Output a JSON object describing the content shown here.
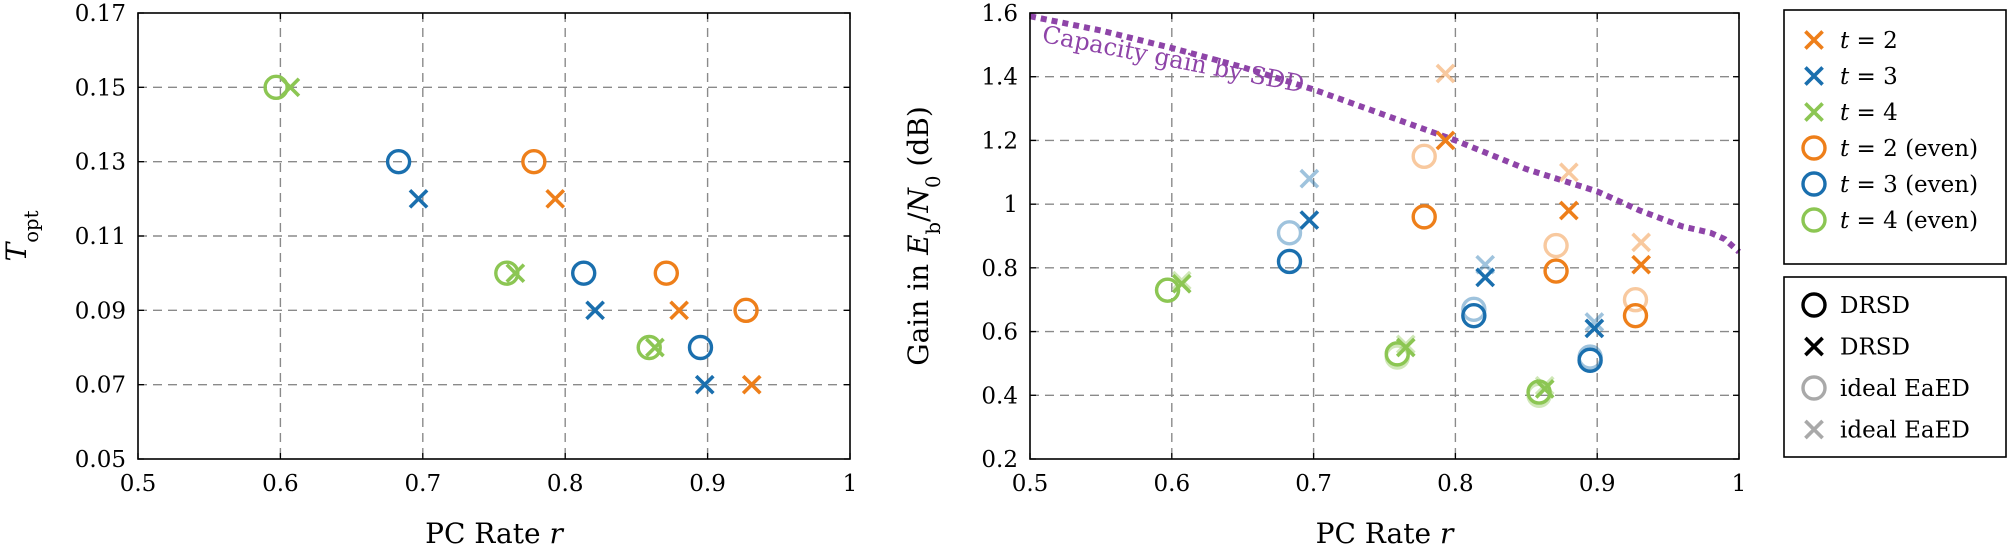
{
  "colors": {
    "orange": "#ee7f1a",
    "blue": "#1a6fae",
    "green": "#8cc653",
    "purple": "#8e44a8",
    "grid": "#8a8a8a",
    "legend_gray": "#a9a9a9"
  },
  "chart_data": [
    {
      "type": "scatter",
      "xlabel": "PC Rate r",
      "ylabel": "T_opt",
      "xlim": [
        0.5,
        1.0
      ],
      "ylim": [
        0.05,
        0.17
      ],
      "xticks": [
        0.5,
        0.6,
        0.7,
        0.8,
        0.9,
        1.0
      ],
      "xtick_labels": [
        "0.5",
        "0.6",
        "0.7",
        "0.8",
        "0.9",
        "1"
      ],
      "yticks": [
        0.05,
        0.07,
        0.09,
        0.11,
        0.13,
        0.15,
        0.17
      ],
      "ytick_labels": [
        "0.05",
        "0.07",
        "0.09",
        "0.11",
        "0.13",
        "0.15",
        "0.17"
      ],
      "grid": true,
      "series": [
        {
          "name": "t = 2",
          "color": "orange",
          "marker": "x",
          "points": [
            [
              0.793,
              0.12
            ],
            [
              0.88,
              0.09
            ],
            [
              0.931,
              0.07
            ]
          ]
        },
        {
          "name": "t = 3",
          "color": "blue",
          "marker": "x",
          "points": [
            [
              0.697,
              0.12
            ],
            [
              0.821,
              0.09
            ],
            [
              0.898,
              0.07
            ]
          ]
        },
        {
          "name": "t = 4",
          "color": "green",
          "marker": "x",
          "points": [
            [
              0.607,
              0.15
            ],
            [
              0.765,
              0.1
            ],
            [
              0.863,
              0.08
            ]
          ]
        },
        {
          "name": "t = 2 (even)",
          "color": "orange",
          "marker": "o",
          "points": [
            [
              0.778,
              0.13
            ],
            [
              0.871,
              0.1
            ],
            [
              0.927,
              0.09
            ]
          ]
        },
        {
          "name": "t = 3 (even)",
          "color": "blue",
          "marker": "o",
          "points": [
            [
              0.683,
              0.13
            ],
            [
              0.813,
              0.1
            ],
            [
              0.895,
              0.08
            ]
          ]
        },
        {
          "name": "t = 4 (even)",
          "color": "green",
          "marker": "o",
          "points": [
            [
              0.597,
              0.15
            ],
            [
              0.759,
              0.1
            ],
            [
              0.859,
              0.08
            ]
          ]
        }
      ]
    },
    {
      "type": "scatter",
      "xlabel": "PC Rate r",
      "ylabel": "Gain in E_b/N_0 (dB)",
      "xlim": [
        0.5,
        1.0
      ],
      "ylim": [
        0.2,
        1.6
      ],
      "xticks": [
        0.5,
        0.6,
        0.7,
        0.8,
        0.9,
        1.0
      ],
      "xtick_labels": [
        "0.5",
        "0.6",
        "0.7",
        "0.8",
        "0.9",
        "1"
      ],
      "yticks": [
        0.2,
        0.4,
        0.6,
        0.8,
        1.0,
        1.2,
        1.4,
        1.6
      ],
      "ytick_labels": [
        "0.2",
        "0.4",
        "0.6",
        "0.8",
        "1",
        "1.2",
        "1.4",
        "1.6"
      ],
      "grid": true,
      "annotation": "Capacity gain by SDD",
      "capacity_curve": {
        "color": "purple",
        "points": [
          [
            0.5,
            1.59
          ],
          [
            0.55,
            1.545
          ],
          [
            0.6,
            1.49
          ],
          [
            0.65,
            1.43
          ],
          [
            0.7,
            1.36
          ],
          [
            0.75,
            1.28
          ],
          [
            0.8,
            1.2
          ],
          [
            0.85,
            1.11
          ],
          [
            0.9,
            1.04
          ],
          [
            0.93,
            0.98
          ],
          [
            0.96,
            0.93
          ],
          [
            0.98,
            0.91
          ],
          [
            0.99,
            0.89
          ],
          [
            1.0,
            0.85
          ]
        ]
      },
      "series": [
        {
          "name": "t = 2",
          "color": "orange",
          "marker": "x",
          "points": [
            [
              0.793,
              1.2
            ],
            [
              0.88,
              0.98
            ],
            [
              0.931,
              0.81
            ]
          ]
        },
        {
          "name": "t = 3",
          "color": "blue",
          "marker": "x",
          "points": [
            [
              0.697,
              0.95
            ],
            [
              0.821,
              0.77
            ],
            [
              0.898,
              0.61
            ]
          ]
        },
        {
          "name": "t = 4",
          "color": "green",
          "marker": "x",
          "points": [
            [
              0.607,
              0.75
            ],
            [
              0.765,
              0.55
            ],
            [
              0.863,
              0.42
            ]
          ]
        },
        {
          "name": "t = 2 (even)",
          "color": "orange",
          "marker": "o",
          "points": [
            [
              0.778,
              0.96
            ],
            [
              0.871,
              0.79
            ],
            [
              0.927,
              0.65
            ]
          ]
        },
        {
          "name": "t = 3 (even)",
          "color": "blue",
          "marker": "o",
          "points": [
            [
              0.683,
              0.82
            ],
            [
              0.813,
              0.65
            ],
            [
              0.895,
              0.51
            ]
          ]
        },
        {
          "name": "t = 4 (even)",
          "color": "green",
          "marker": "o",
          "points": [
            [
              0.597,
              0.73
            ],
            [
              0.759,
              0.53
            ],
            [
              0.859,
              0.41
            ]
          ]
        },
        {
          "name": "t = 2 ideal EaED",
          "color": "orange",
          "marker": "x",
          "light": true,
          "points": [
            [
              0.793,
              1.41
            ],
            [
              0.88,
              1.1
            ],
            [
              0.931,
              0.88
            ]
          ]
        },
        {
          "name": "t = 3 ideal EaED",
          "color": "blue",
          "marker": "x",
          "light": true,
          "points": [
            [
              0.697,
              1.08
            ],
            [
              0.821,
              0.81
            ],
            [
              0.898,
              0.63
            ]
          ]
        },
        {
          "name": "t = 4 ideal EaED",
          "color": "green",
          "marker": "x",
          "light": true,
          "points": [
            [
              0.607,
              0.76
            ],
            [
              0.765,
              0.56
            ],
            [
              0.863,
              0.43
            ]
          ]
        },
        {
          "name": "t = 2 (even) ideal EaED",
          "color": "orange",
          "marker": "o",
          "light": true,
          "points": [
            [
              0.778,
              1.15
            ],
            [
              0.871,
              0.87
            ],
            [
              0.927,
              0.7
            ]
          ]
        },
        {
          "name": "t = 3 (even) ideal EaED",
          "color": "blue",
          "marker": "o",
          "light": true,
          "points": [
            [
              0.683,
              0.91
            ],
            [
              0.813,
              0.67
            ],
            [
              0.895,
              0.52
            ]
          ]
        },
        {
          "name": "t = 4 (even) ideal EaED",
          "color": "green",
          "marker": "o",
          "light": true,
          "points": [
            [
              0.597,
              0.73
            ],
            [
              0.759,
              0.52
            ],
            [
              0.859,
              0.4
            ]
          ]
        }
      ]
    }
  ],
  "legend_colors": {
    "placement": "right",
    "items": [
      {
        "marker": "x",
        "color": "orange",
        "label": "t = 2"
      },
      {
        "marker": "x",
        "color": "blue",
        "label": "t = 3"
      },
      {
        "marker": "x",
        "color": "green",
        "label": "t = 4"
      },
      {
        "marker": "o",
        "color": "orange",
        "label": "t = 2 (even)"
      },
      {
        "marker": "o",
        "color": "blue",
        "label": "t = 3 (even)"
      },
      {
        "marker": "o",
        "color": "green",
        "label": "t = 4 (even)"
      }
    ]
  },
  "legend_markers": {
    "placement": "right",
    "items": [
      {
        "marker": "o",
        "color": "black",
        "label": "DRSD"
      },
      {
        "marker": "x",
        "color": "black",
        "label": "DRSD"
      },
      {
        "marker": "o",
        "color": "gray",
        "label": "ideal EaED"
      },
      {
        "marker": "x",
        "color": "gray",
        "label": "ideal EaED"
      }
    ]
  }
}
